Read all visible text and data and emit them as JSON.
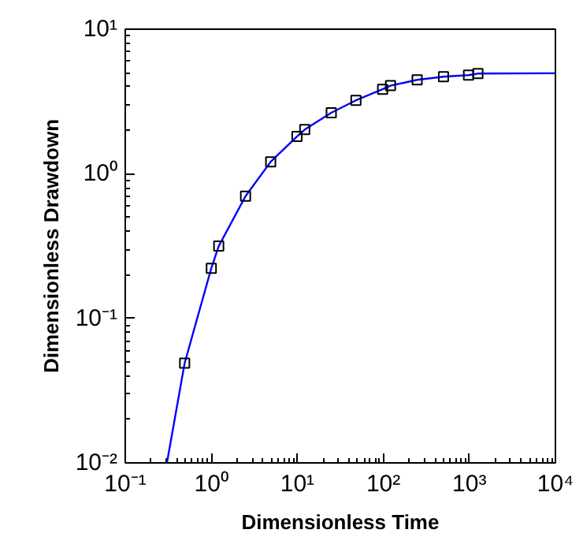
{
  "chart_data": {
    "type": "line",
    "xlabel": "Dimensionless Time",
    "ylabel": "Dimensionless Drawdown",
    "log": "xy",
    "grid": false,
    "xlim": [
      0.1,
      10000
    ],
    "ylim": [
      0.01,
      10
    ],
    "xticks": [
      {
        "value": 0.1,
        "label": "10⁻¹"
      },
      {
        "value": 1,
        "label": "10⁰"
      },
      {
        "value": 10,
        "label": "10¹"
      },
      {
        "value": 100,
        "label": "10²"
      },
      {
        "value": 1000,
        "label": "10³"
      },
      {
        "value": 10000,
        "label": "10⁴"
      }
    ],
    "yticks": [
      {
        "value": 0.01,
        "label": "10⁻²"
      },
      {
        "value": 0.1,
        "label": "10⁻¹"
      },
      {
        "value": 1,
        "label": "10⁰"
      },
      {
        "value": 10,
        "label": "10¹"
      }
    ],
    "series": [
      {
        "color": "#0000ff",
        "marker": "none",
        "x": [
          0.305,
          0.49,
          1.0,
          1.22,
          2.5,
          4.9,
          9.9,
          12.2,
          24.8,
          48,
          98,
          121,
          247,
          500,
          977,
          1256,
          10000
        ],
        "values": [
          0.01,
          0.049,
          0.222,
          0.316,
          0.7,
          1.21,
          1.81,
          2.02,
          2.64,
          3.22,
          3.84,
          4.07,
          4.46,
          4.69,
          4.81,
          4.93,
          4.96
        ]
      },
      {
        "type": "scatter",
        "color": "#000000",
        "marker": "square",
        "x": [
          0.49,
          1.0,
          1.22,
          2.5,
          4.9,
          9.9,
          12.2,
          24.8,
          48,
          98,
          121,
          247,
          500,
          977,
          1256
        ],
        "values": [
          0.049,
          0.222,
          0.316,
          0.7,
          1.21,
          1.81,
          2.02,
          2.64,
          3.22,
          3.84,
          4.07,
          4.46,
          4.69,
          4.81,
          4.93
        ]
      }
    ]
  }
}
